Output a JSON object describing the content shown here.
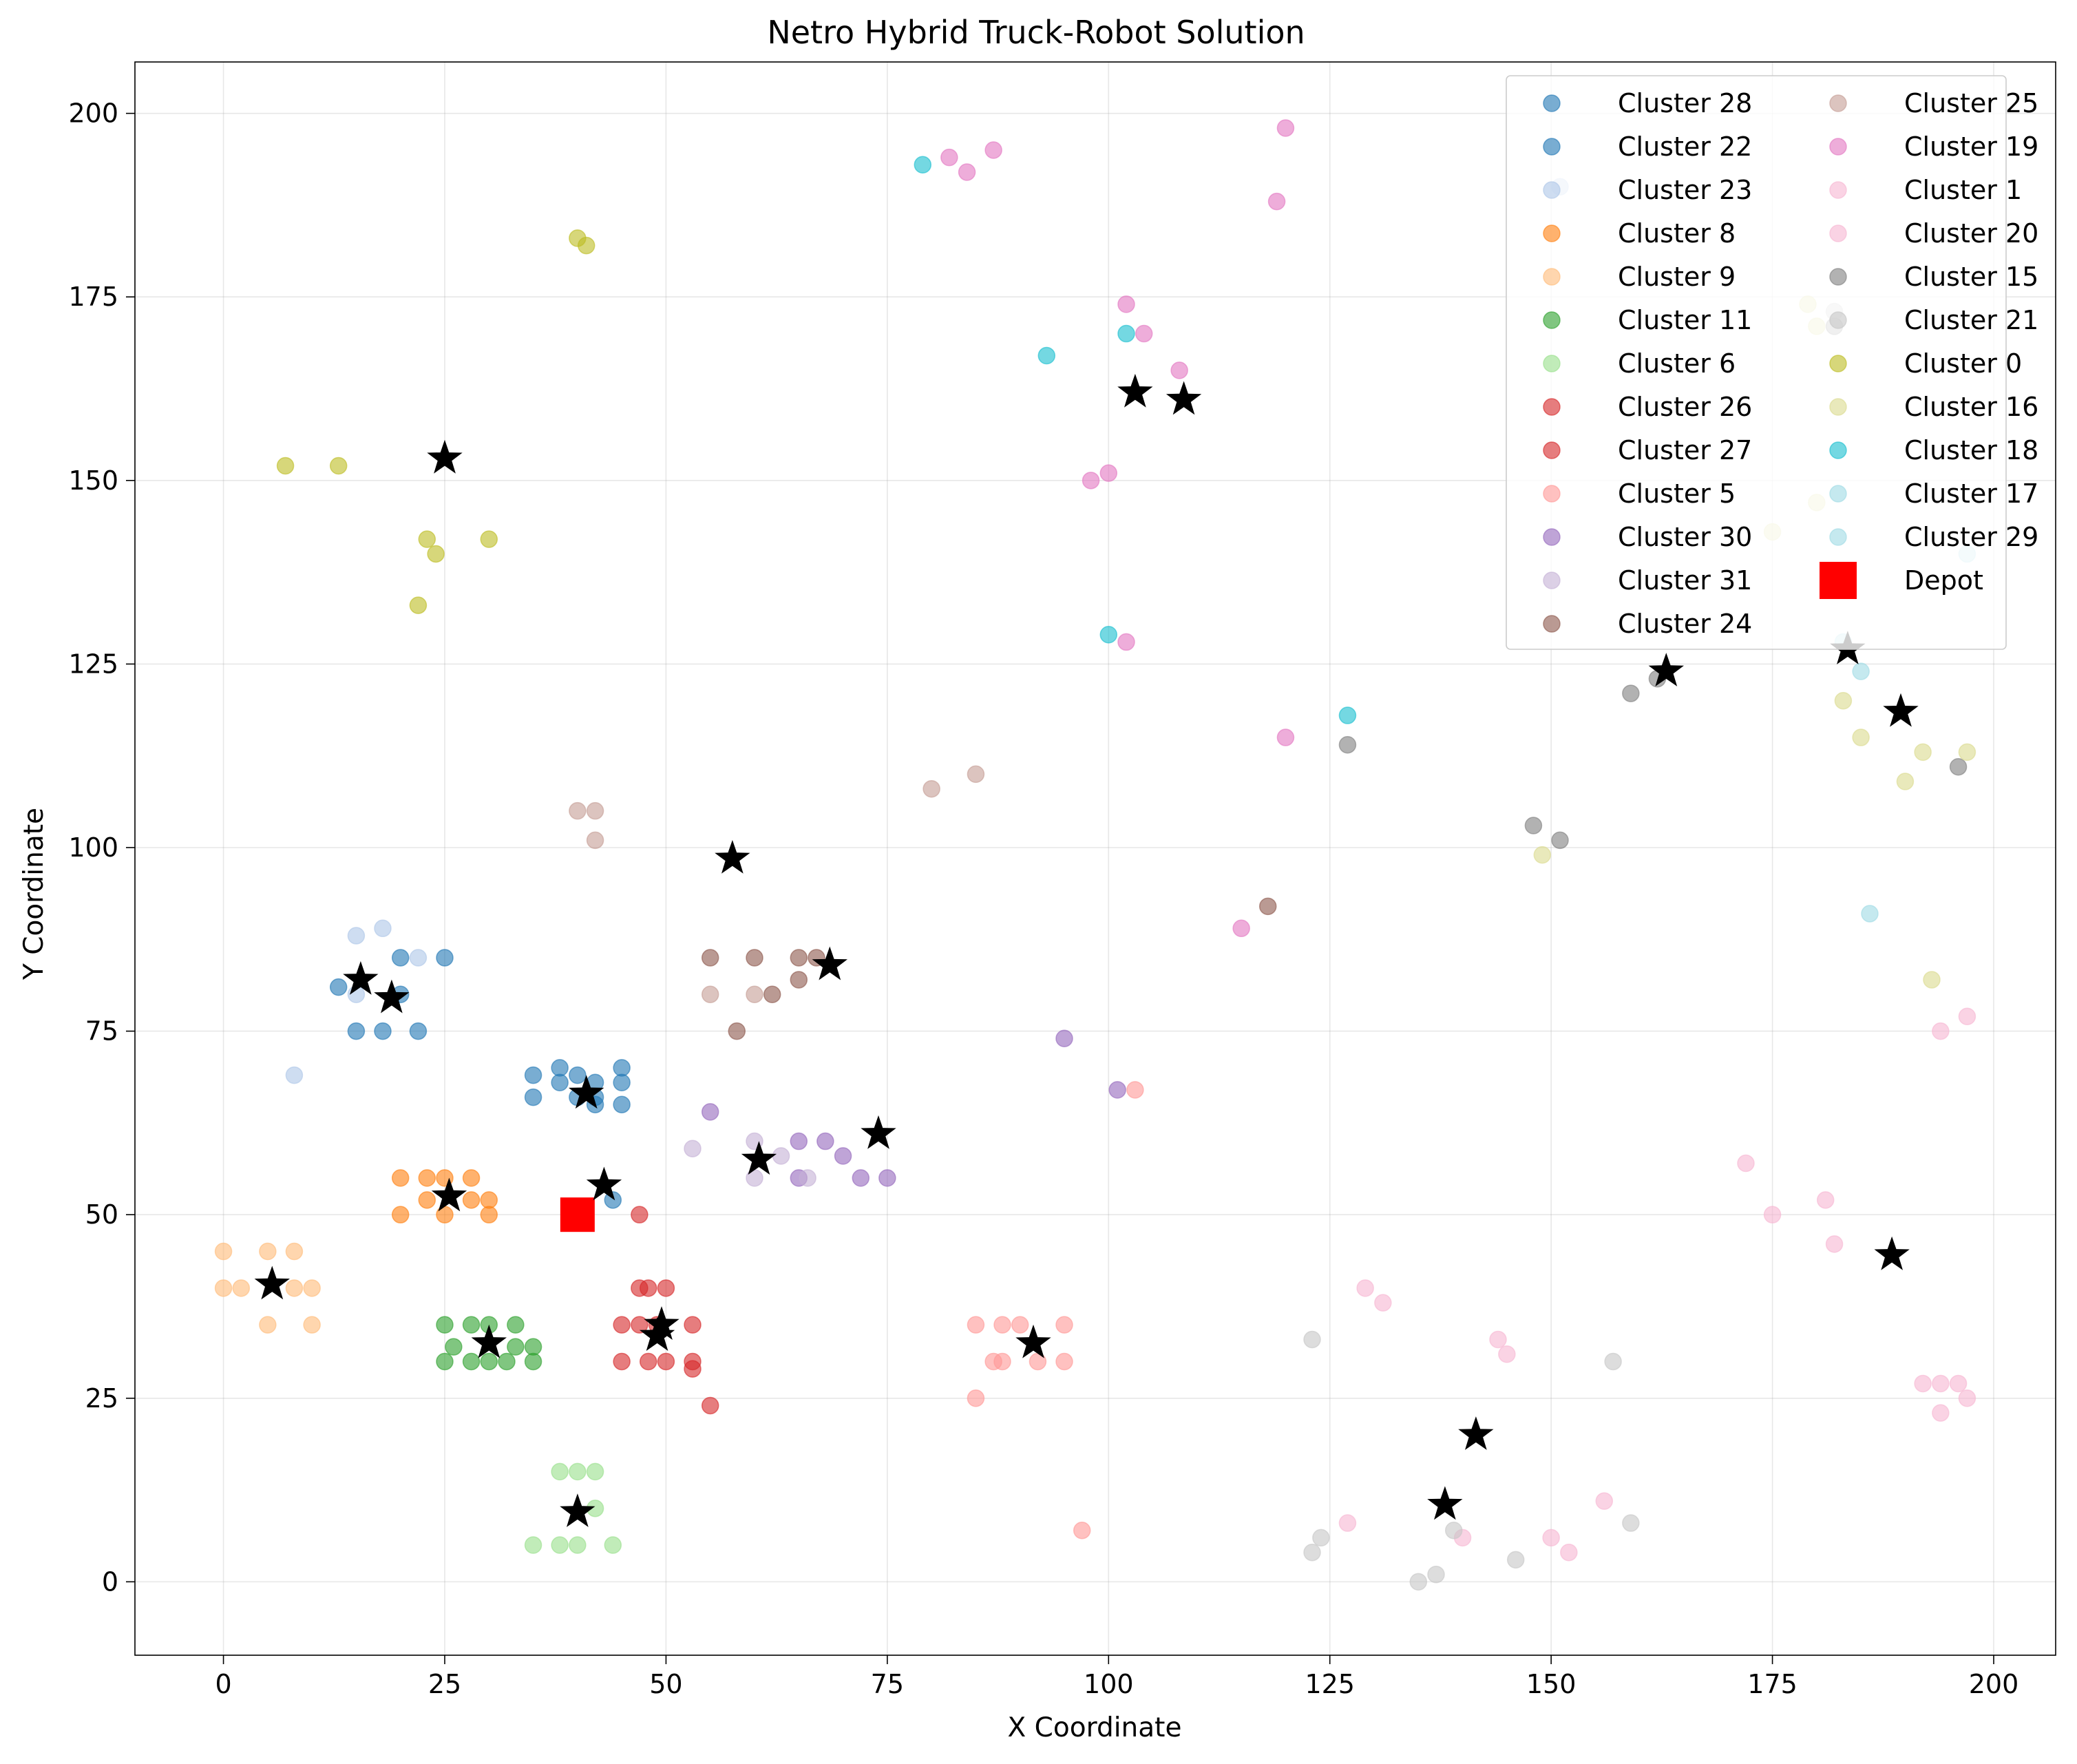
{
  "chart_data": {
    "type": "scatter",
    "title": "Netro Hybrid Truck-Robot Solution",
    "xlabel": "X Coordinate",
    "ylabel": "Y Coordinate",
    "xlim": [
      -10,
      207
    ],
    "ylim": [
      -10,
      207
    ],
    "xticks": [
      0,
      25,
      50,
      75,
      100,
      125,
      150,
      175,
      200
    ],
    "yticks": [
      0,
      25,
      50,
      75,
      100,
      125,
      150,
      175,
      200
    ],
    "grid": true,
    "legend_position": "top-right",
    "series": [
      {
        "name": "Cluster 28",
        "color": "#1f77b4",
        "points": [
          [
            42,
            66
          ],
          [
            42,
            65
          ],
          [
            44,
            52
          ],
          [
            38,
            68
          ],
          [
            35,
            69
          ],
          [
            20,
            80
          ]
        ]
      },
      {
        "name": "Cluster 22",
        "color": "#1f77b4",
        "points": [
          [
            40,
            69
          ],
          [
            40,
            66
          ],
          [
            42,
            68
          ],
          [
            45,
            70
          ],
          [
            45,
            68
          ],
          [
            45,
            65
          ],
          [
            35,
            66
          ],
          [
            38,
            70
          ],
          [
            20,
            85
          ],
          [
            25,
            85
          ],
          [
            13,
            81
          ],
          [
            15,
            75
          ],
          [
            18,
            75
          ],
          [
            22,
            75
          ]
        ]
      },
      {
        "name": "Cluster 23",
        "color": "#aec7e8",
        "points": [
          [
            15,
            88
          ],
          [
            18,
            89
          ],
          [
            22,
            85
          ],
          [
            15,
            80
          ],
          [
            8,
            69
          ],
          [
            151,
            190
          ]
        ]
      },
      {
        "name": "Cluster 8",
        "color": "#ff7f0e",
        "points": [
          [
            20,
            55
          ],
          [
            23,
            55
          ],
          [
            25,
            55
          ],
          [
            28,
            55
          ],
          [
            23,
            52
          ],
          [
            28,
            52
          ],
          [
            30,
            52
          ],
          [
            20,
            50
          ],
          [
            25,
            50
          ],
          [
            30,
            50
          ]
        ]
      },
      {
        "name": "Cluster 9",
        "color": "#ffbb78",
        "points": [
          [
            0,
            45
          ],
          [
            5,
            45
          ],
          [
            8,
            45
          ],
          [
            0,
            40
          ],
          [
            2,
            40
          ],
          [
            8,
            40
          ],
          [
            10,
            40
          ],
          [
            5,
            35
          ],
          [
            10,
            35
          ]
        ]
      },
      {
        "name": "Cluster 11",
        "color": "#2ca02c",
        "points": [
          [
            25,
            35
          ],
          [
            28,
            35
          ],
          [
            30,
            35
          ],
          [
            33,
            35
          ],
          [
            26,
            32
          ],
          [
            33,
            32
          ],
          [
            35,
            32
          ],
          [
            25,
            30
          ],
          [
            28,
            30
          ],
          [
            30,
            30
          ],
          [
            32,
            30
          ],
          [
            35,
            30
          ]
        ]
      },
      {
        "name": "Cluster 6",
        "color": "#98df8a",
        "points": [
          [
            38,
            15
          ],
          [
            40,
            15
          ],
          [
            42,
            15
          ],
          [
            42,
            10
          ],
          [
            35,
            5
          ],
          [
            38,
            5
          ],
          [
            40,
            5
          ],
          [
            44,
            5
          ]
        ]
      },
      {
        "name": "Cluster 26",
        "color": "#d62728",
        "points": [
          [
            47,
            40
          ],
          [
            48,
            40
          ],
          [
            50,
            40
          ],
          [
            45,
            35
          ],
          [
            47,
            35
          ],
          [
            49,
            35
          ],
          [
            53,
            35
          ],
          [
            45,
            30
          ],
          [
            48,
            30
          ],
          [
            50,
            30
          ],
          [
            53,
            30
          ],
          [
            53,
            29
          ],
          [
            55,
            24
          ]
        ]
      },
      {
        "name": "Cluster 27",
        "color": "#d62728",
        "points": [
          [
            47,
            50
          ]
        ]
      },
      {
        "name": "Cluster 5",
        "color": "#ff9896",
        "points": [
          [
            85,
            35
          ],
          [
            88,
            35
          ],
          [
            90,
            35
          ],
          [
            95,
            35
          ],
          [
            87,
            30
          ],
          [
            88,
            30
          ],
          [
            92,
            30
          ],
          [
            95,
            30
          ],
          [
            85,
            25
          ],
          [
            97,
            7
          ],
          [
            103,
            67
          ]
        ]
      },
      {
        "name": "Cluster 30",
        "color": "#9467bd",
        "points": [
          [
            55,
            64
          ],
          [
            65,
            60
          ],
          [
            68,
            60
          ],
          [
            70,
            58
          ],
          [
            65,
            55
          ],
          [
            72,
            55
          ],
          [
            75,
            55
          ],
          [
            95,
            74
          ],
          [
            101,
            67
          ]
        ]
      },
      {
        "name": "Cluster 31",
        "color": "#c5b0d5",
        "points": [
          [
            53,
            59
          ],
          [
            60,
            60
          ],
          [
            63,
            58
          ],
          [
            60,
            55
          ],
          [
            66,
            55
          ]
        ]
      },
      {
        "name": "Cluster 24",
        "color": "#8c564b",
        "points": [
          [
            55,
            85
          ],
          [
            60,
            85
          ],
          [
            65,
            85
          ],
          [
            67,
            85
          ],
          [
            65,
            82
          ],
          [
            62,
            80
          ],
          [
            58,
            75
          ],
          [
            118,
            92
          ]
        ]
      },
      {
        "name": "Cluster 25",
        "color": "#c49c94",
        "points": [
          [
            40,
            105
          ],
          [
            42,
            105
          ],
          [
            42,
            101
          ],
          [
            80,
            108
          ],
          [
            85,
            110
          ],
          [
            55,
            80
          ],
          [
            60,
            80
          ]
        ]
      },
      {
        "name": "Cluster 19",
        "color": "#e377c2",
        "points": [
          [
            82,
            194
          ],
          [
            84,
            192
          ],
          [
            87,
            195
          ],
          [
            120,
            198
          ],
          [
            119,
            188
          ],
          [
            102,
            174
          ],
          [
            104,
            170
          ],
          [
            108,
            165
          ],
          [
            98,
            150
          ],
          [
            100,
            151
          ],
          [
            102,
            128
          ],
          [
            120,
            115
          ],
          [
            115,
            89
          ]
        ]
      },
      {
        "name": "Cluster 1",
        "color": "#f7b6d2",
        "points": [
          [
            129,
            40
          ],
          [
            131,
            38
          ],
          [
            127,
            8
          ],
          [
            140,
            6
          ],
          [
            144,
            33
          ],
          [
            145,
            31
          ],
          [
            150,
            6
          ],
          [
            152,
            4
          ],
          [
            156,
            11
          ]
        ]
      },
      {
        "name": "Cluster 20",
        "color": "#f7b6d2",
        "points": [
          [
            172,
            57
          ],
          [
            175,
            50
          ],
          [
            181,
            52
          ],
          [
            182,
            46
          ],
          [
            194,
            75
          ],
          [
            197,
            77
          ],
          [
            192,
            27
          ],
          [
            194,
            27
          ],
          [
            196,
            27
          ],
          [
            197,
            25
          ],
          [
            194,
            23
          ]
        ]
      },
      {
        "name": "Cluster 15",
        "color": "#7f7f7f",
        "points": [
          [
            148,
            103
          ],
          [
            151,
            101
          ],
          [
            127,
            114
          ],
          [
            159,
            121
          ],
          [
            162,
            123
          ],
          [
            196,
            111
          ],
          [
            182,
            171
          ]
        ]
      },
      {
        "name": "Cluster 21",
        "color": "#c7c7c7",
        "points": [
          [
            123,
            33
          ],
          [
            157,
            30
          ],
          [
            123,
            4
          ],
          [
            124,
            6
          ],
          [
            135,
            0
          ],
          [
            137,
            1
          ],
          [
            139,
            7
          ],
          [
            146,
            3
          ],
          [
            159,
            8
          ],
          [
            182,
            173
          ]
        ]
      },
      {
        "name": "Cluster 0",
        "color": "#bcbd22",
        "points": [
          [
            40,
            183
          ],
          [
            41,
            182
          ],
          [
            7,
            152
          ],
          [
            13,
            152
          ],
          [
            23,
            142
          ],
          [
            24,
            140
          ],
          [
            30,
            142
          ],
          [
            22,
            133
          ]
        ]
      },
      {
        "name": "Cluster 16",
        "color": "#dbdb8d",
        "points": [
          [
            179,
            174
          ],
          [
            180,
            171
          ],
          [
            175,
            143
          ],
          [
            180,
            147
          ],
          [
            183,
            120
          ],
          [
            185,
            115
          ],
          [
            192,
            113
          ],
          [
            197,
            113
          ],
          [
            190,
            109
          ],
          [
            149,
            99
          ],
          [
            193,
            82
          ]
        ]
      },
      {
        "name": "Cluster 18",
        "color": "#17becf",
        "points": [
          [
            79,
            193
          ],
          [
            93,
            167
          ],
          [
            102,
            170
          ],
          [
            100,
            129
          ],
          [
            127,
            118
          ]
        ]
      },
      {
        "name": "Cluster 17",
        "color": "#9edae5",
        "points": [
          [
            185,
            124
          ],
          [
            186,
            91
          ],
          [
            197,
            140
          ]
        ]
      },
      {
        "name": "Cluster 29",
        "color": "#9edae5",
        "points": [
          [
            183,
            128
          ]
        ]
      },
      {
        "name": "Depot",
        "color": "#ff0000",
        "marker": "square",
        "points": [
          [
            40,
            50
          ]
        ]
      }
    ],
    "robot_stations": {
      "color": "#000000",
      "marker": "star",
      "points": [
        [
          25,
          153
        ],
        [
          103,
          162
        ],
        [
          108.5,
          161
        ],
        [
          57.5,
          98.5
        ],
        [
          15.5,
          82
        ],
        [
          19,
          79.5
        ],
        [
          68.5,
          84
        ],
        [
          41,
          66.5
        ],
        [
          74,
          61
        ],
        [
          60.5,
          57.5
        ],
        [
          43,
          54
        ],
        [
          25.5,
          52.5
        ],
        [
          5.5,
          40.5
        ],
        [
          30,
          32.5
        ],
        [
          49.5,
          35
        ],
        [
          49,
          33.5
        ],
        [
          91.5,
          32.5
        ],
        [
          40,
          9.5
        ],
        [
          141.5,
          20
        ],
        [
          138,
          10.5
        ],
        [
          163,
          124
        ],
        [
          183.5,
          127
        ],
        [
          189.5,
          118.5
        ],
        [
          188.5,
          44.5
        ]
      ]
    }
  }
}
